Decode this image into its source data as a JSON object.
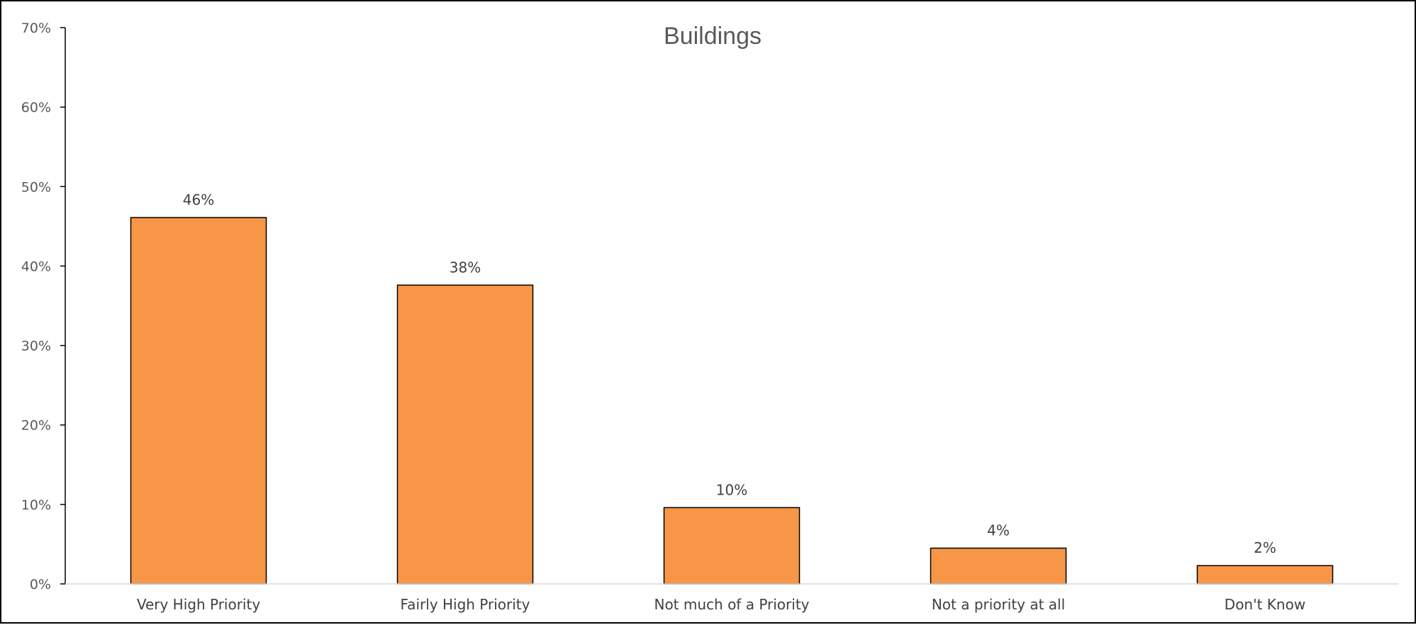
{
  "chart_data": {
    "type": "bar",
    "title": "Buildings",
    "categories": [
      "Very High Priority",
      "Fairly High Priority",
      "Not much of a Priority",
      "Not a priority at all",
      "Don't Know"
    ],
    "values": [
      46.1,
      37.6,
      9.6,
      4.5,
      2.3
    ],
    "data_labels": [
      "46%",
      "38%",
      "10%",
      "4%",
      "2%"
    ],
    "ylim": [
      0,
      70
    ],
    "y_ticks": [
      "0%",
      "10%",
      "20%",
      "30%",
      "40%",
      "50%",
      "60%",
      "70%"
    ],
    "xlabel": "",
    "ylabel": "",
    "grid": false,
    "legend": "none",
    "bar_color": "#F79646",
    "bar_border_color": "#000000"
  }
}
